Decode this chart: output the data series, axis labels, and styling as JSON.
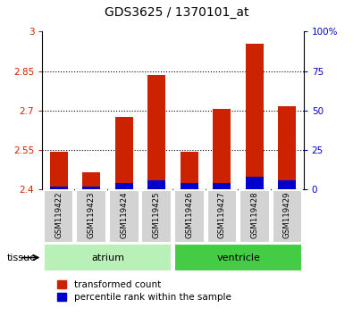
{
  "title": "GDS3625 / 1370101_at",
  "samples": [
    "GSM119422",
    "GSM119423",
    "GSM119424",
    "GSM119425",
    "GSM119426",
    "GSM119427",
    "GSM119428",
    "GSM119429"
  ],
  "transformed_counts": [
    2.545,
    2.465,
    2.675,
    2.835,
    2.545,
    2.705,
    2.955,
    2.715
  ],
  "percentile_ranks": [
    2,
    2,
    4,
    6,
    4,
    4,
    8,
    6
  ],
  "ylim_left": [
    2.4,
    3.0
  ],
  "ylim_right": [
    0,
    100
  ],
  "yticks_left": [
    2.4,
    2.55,
    2.7,
    2.85,
    3.0
  ],
  "yticks_right": [
    0,
    25,
    50,
    75,
    100
  ],
  "ytick_labels_left": [
    "2.4",
    "2.55",
    "2.7",
    "2.85",
    "3"
  ],
  "ytick_labels_right": [
    "0",
    "25",
    "50",
    "75",
    "100%"
  ],
  "groups": [
    {
      "name": "atrium",
      "indices": [
        0,
        1,
        2,
        3
      ],
      "color": "#b8f0b8"
    },
    {
      "name": "ventricle",
      "indices": [
        4,
        5,
        6,
        7
      ],
      "color": "#44cc44"
    }
  ],
  "bar_color_red": "#cc2200",
  "bar_color_blue": "#0000cc",
  "bar_width": 0.55,
  "base_value": 2.4,
  "tissue_label": "tissue",
  "legend_red": "transformed count",
  "legend_blue": "percentile rank within the sample",
  "background_color": "#ffffff",
  "tick_area_color": "#d3d3d3",
  "left_tick_color": "#cc2200",
  "right_tick_color": "#0000cc",
  "dotted_yticks": [
    2.55,
    2.7,
    2.85
  ],
  "figsize": [
    3.95,
    3.54
  ],
  "dpi": 100
}
